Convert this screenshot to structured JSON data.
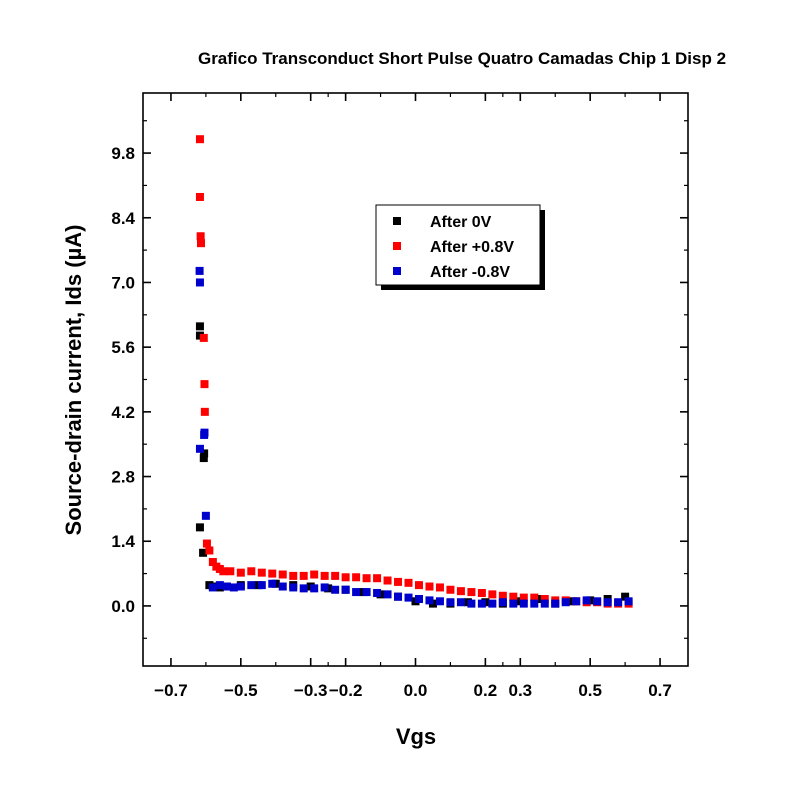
{
  "chart_data": {
    "type": "scatter",
    "title": "Grafico Transconduct Short Pulse Quatro Camadas Chip 1 Disp 2",
    "xlabel": "Vgs",
    "ylabel": "Source-drain current, Ids (µA)",
    "xlim": [
      -0.78,
      0.78
    ],
    "ylim": [
      -1.3,
      11.1
    ],
    "x_ticks": [
      -0.7,
      -0.5,
      -0.3,
      -0.2,
      0.0,
      0.2,
      0.3,
      0.5,
      0.7
    ],
    "x_tick_labels": [
      "−0.7",
      "−0.5",
      "−0.3",
      "−0.2",
      "0.0",
      "0.2",
      "0.3",
      "0.5",
      "0.7"
    ],
    "y_ticks": [
      0.0,
      1.4,
      2.8,
      4.2,
      5.6,
      7.0,
      8.4,
      9.8
    ],
    "y_tick_labels": [
      "0.0",
      "1.4",
      "2.8",
      "4.2",
      "5.6",
      "7.0",
      "8.4",
      "9.8"
    ],
    "legend_position": "upper-center",
    "grid": false,
    "series": [
      {
        "name": "After 0V",
        "color": "#000000",
        "x": [
          -0.617,
          -0.617,
          -0.617,
          -0.608,
          -0.606,
          -0.605,
          -0.59,
          -0.58,
          -0.56,
          -0.54,
          -0.5,
          -0.45,
          -0.4,
          -0.35,
          -0.3,
          -0.25,
          -0.2,
          -0.15,
          -0.1,
          -0.05,
          0.0,
          0.05,
          0.1,
          0.15,
          0.2,
          0.25,
          0.3,
          0.35,
          0.4,
          0.45,
          0.5,
          0.55,
          0.6
        ],
        "y": [
          5.85,
          6.05,
          1.7,
          1.15,
          3.2,
          3.3,
          0.45,
          0.42,
          0.4,
          0.42,
          0.45,
          0.45,
          0.48,
          0.45,
          0.42,
          0.38,
          0.35,
          0.3,
          0.25,
          0.2,
          0.1,
          0.05,
          0.05,
          0.08,
          0.08,
          0.05,
          0.1,
          0.15,
          0.05,
          0.1,
          0.12,
          0.15,
          0.2
        ]
      },
      {
        "name": "After +0.8V",
        "color": "#ff0000",
        "x": [
          -0.617,
          -0.617,
          -0.615,
          -0.614,
          -0.606,
          -0.604,
          -0.603,
          -0.597,
          -0.59,
          -0.58,
          -0.57,
          -0.56,
          -0.55,
          -0.53,
          -0.5,
          -0.47,
          -0.44,
          -0.41,
          -0.38,
          -0.35,
          -0.32,
          -0.29,
          -0.26,
          -0.23,
          -0.2,
          -0.17,
          -0.14,
          -0.11,
          -0.08,
          -0.05,
          -0.02,
          0.01,
          0.04,
          0.07,
          0.1,
          0.13,
          0.16,
          0.19,
          0.22,
          0.25,
          0.28,
          0.31,
          0.34,
          0.37,
          0.4,
          0.43,
          0.46,
          0.49,
          0.52,
          0.55,
          0.58,
          0.61
        ],
        "y": [
          10.1,
          8.85,
          8.0,
          7.85,
          5.8,
          4.8,
          4.2,
          1.35,
          1.2,
          0.95,
          0.85,
          0.8,
          0.75,
          0.75,
          0.72,
          0.75,
          0.72,
          0.7,
          0.68,
          0.65,
          0.65,
          0.68,
          0.65,
          0.65,
          0.62,
          0.62,
          0.6,
          0.6,
          0.55,
          0.52,
          0.5,
          0.45,
          0.42,
          0.4,
          0.35,
          0.32,
          0.3,
          0.28,
          0.25,
          0.22,
          0.2,
          0.18,
          0.18,
          0.15,
          0.12,
          0.12,
          0.1,
          0.08,
          0.08,
          0.05,
          0.05,
          0.05
        ]
      },
      {
        "name": "After -0.8V",
        "color": "#0000cc",
        "x": [
          -0.618,
          -0.617,
          -0.617,
          -0.605,
          -0.604,
          -0.6,
          -0.58,
          -0.56,
          -0.54,
          -0.52,
          -0.5,
          -0.47,
          -0.44,
          -0.41,
          -0.38,
          -0.35,
          -0.32,
          -0.29,
          -0.26,
          -0.23,
          -0.2,
          -0.17,
          -0.14,
          -0.11,
          -0.08,
          -0.05,
          -0.02,
          0.01,
          0.04,
          0.07,
          0.1,
          0.13,
          0.16,
          0.19,
          0.22,
          0.25,
          0.28,
          0.31,
          0.34,
          0.37,
          0.4,
          0.43,
          0.46,
          0.49,
          0.52,
          0.55,
          0.58,
          0.61
        ],
        "y": [
          7.25,
          7.0,
          3.4,
          3.7,
          3.75,
          1.95,
          0.4,
          0.45,
          0.42,
          0.4,
          0.42,
          0.45,
          0.45,
          0.48,
          0.42,
          0.4,
          0.38,
          0.38,
          0.4,
          0.35,
          0.35,
          0.3,
          0.3,
          0.28,
          0.25,
          0.2,
          0.18,
          0.15,
          0.12,
          0.1,
          0.08,
          0.08,
          0.05,
          0.05,
          0.05,
          0.08,
          0.05,
          0.05,
          0.05,
          0.05,
          0.05,
          0.08,
          0.1,
          0.12,
          0.1,
          0.08,
          0.08,
          0.1
        ]
      }
    ]
  }
}
